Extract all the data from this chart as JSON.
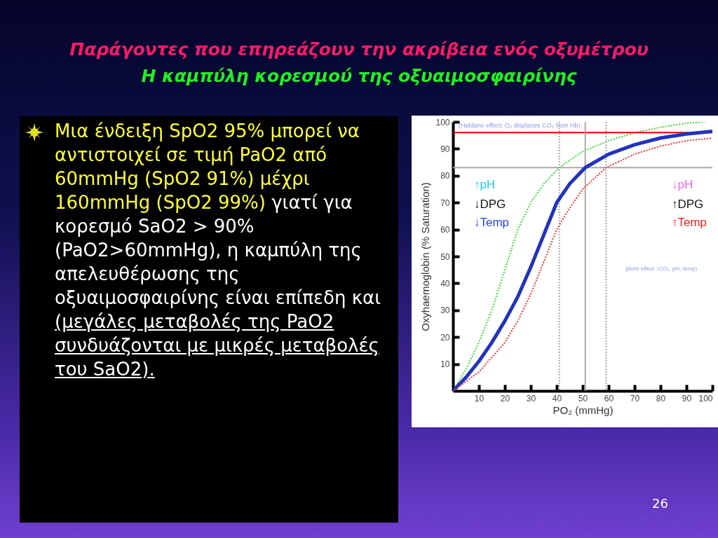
{
  "chart_data": {
    "type": "line",
    "title": "Παράγοντες που επηρεάζουν την ακρίβεια ενός οξυμέτρου",
    "subtitle": "Η καμπύλη κορεσμού της οξυαιμοσφαιρίνης",
    "xlabel": "PO₂ (mmHg)",
    "ylabel": "Oxyhaemoglobin (% Saturation)",
    "xlim": [
      0,
      100
    ],
    "ylim": [
      0,
      100
    ],
    "xticks": [
      10,
      20,
      30,
      40,
      50,
      60,
      70,
      80,
      90,
      100
    ],
    "yticks": [
      10,
      20,
      30,
      40,
      50,
      60,
      70,
      80,
      90,
      100
    ],
    "series": [
      {
        "color": "#33dd33",
        "line_style": "dotted",
        "x": [
          0,
          5,
          10,
          15,
          20,
          25,
          30,
          35,
          41,
          50,
          60,
          70,
          80,
          90,
          97
        ],
        "values": [
          0,
          8,
          18,
          30,
          45,
          60,
          70,
          77,
          83,
          89,
          93,
          96,
          98,
          99.5,
          100
        ]
      },
      {
        "color": "#2233bb",
        "line_style": "solid",
        "x": [
          0,
          5,
          10,
          15,
          20,
          25,
          30,
          35,
          40,
          45,
          51,
          60,
          70,
          80,
          90,
          100
        ],
        "values": [
          0,
          5,
          11,
          18,
          26,
          35,
          46,
          58,
          70,
          77,
          83,
          88,
          91.5,
          94,
          95.5,
          96.5
        ]
      },
      {
        "color": "#ee3333",
        "line_style": "dotted",
        "x": [
          0,
          10,
          20,
          25,
          30,
          35,
          40,
          45,
          50,
          59,
          70,
          80,
          90,
          100
        ],
        "values": [
          0,
          7,
          18,
          26,
          36,
          48,
          60,
          68,
          75,
          83,
          88,
          91,
          93,
          94
        ]
      }
    ],
    "ref_lines": [
      {
        "axis": "y",
        "value": 83,
        "color": "#aaaaaa",
        "line_style": "solid"
      },
      {
        "axis": "x",
        "value": 51,
        "color": "#aaaaaa",
        "line_style": "solid"
      },
      {
        "axis": "x",
        "value": 41,
        "color": "#aaaaaa",
        "line_style": "dotted"
      },
      {
        "axis": "x",
        "value": 59,
        "color": "#aaaaaa",
        "line_style": "dotted"
      },
      {
        "axis": "y",
        "value": 96,
        "color": "#dd0000",
        "line_style": "solid"
      }
    ],
    "annotations": [
      "(Haldane effect: O₂ displaces CO₂ from Hb)",
      "↑pH",
      "↓DPG",
      "↓Temp",
      "↓pH",
      "↑DPG",
      "↑Temp",
      "(Bohr effect ↑CO₂, pH, temp)",
      "Μια  ένδειξη SpO2 95% μπορεί να αντιστοιχεί σε τιμή PaO2  από 60mmHg (SpO2 91%) μέχρι 160mmHg (SpO2 99%)",
      " γιατί για κορεσμό SaO2  > 90% (PaO2>60mmHg), η καμπύλη της απελευθέρωσης της οξυαιμοσφαιρίνης είναι επίπεδη και ",
      "(μεγάλες μεταβολές της PaO2 συνδυάζονται με μικρές μεταβολές του SaO2).",
      "26"
    ]
  }
}
